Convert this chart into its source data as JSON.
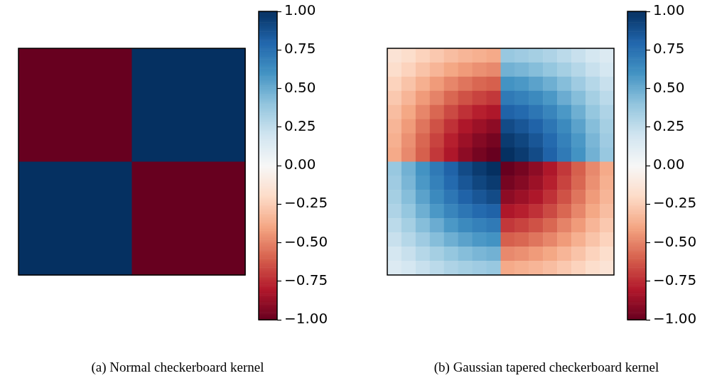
{
  "chart_data": [
    {
      "type": "heatmap",
      "title": "(a) Normal checkerboard kernel",
      "categories": [
        null,
        null
      ],
      "y_categories": [
        null,
        null
      ],
      "tick_labels": false,
      "cells": [
        [
          -1,
          1
        ],
        [
          1,
          -1
        ]
      ],
      "clim": [
        -1,
        1
      ],
      "cticks": [
        {
          "value": -1,
          "label": "−1.00"
        },
        {
          "value": -0.75,
          "label": "−0.75"
        },
        {
          "value": -0.5,
          "label": "−0.50"
        },
        {
          "value": -0.25,
          "label": "−0.25"
        },
        {
          "value": 0,
          "label": "0.00"
        },
        {
          "value": 0.25,
          "label": "0.25"
        },
        {
          "value": 0.5,
          "label": "0.50"
        },
        {
          "value": 0.75,
          "label": "0.75"
        },
        {
          "value": 1,
          "label": "1.00"
        }
      ]
    },
    {
      "type": "heatmap",
      "title": "(b) Gaussian tapered checkerboard kernel",
      "categories": [
        null,
        null,
        null,
        null,
        null,
        null,
        null,
        null,
        null,
        null,
        null,
        null,
        null,
        null,
        null,
        null
      ],
      "y_categories": [
        null,
        null,
        null,
        null,
        null,
        null,
        null,
        null,
        null,
        null,
        null,
        null,
        null,
        null,
        null,
        null
      ],
      "tick_labels": false,
      "cells": [
        [
          -0.14,
          -0.18,
          -0.23,
          -0.27,
          -0.31,
          -0.34,
          -0.36,
          -0.38,
          0.38,
          0.36,
          0.34,
          0.31,
          0.27,
          0.23,
          0.18,
          0.14
        ],
        [
          -0.18,
          -0.23,
          -0.29,
          -0.34,
          -0.39,
          -0.43,
          -0.46,
          -0.48,
          0.48,
          0.46,
          0.43,
          0.39,
          0.34,
          0.29,
          0.23,
          0.18
        ],
        [
          -0.23,
          -0.29,
          -0.36,
          -0.43,
          -0.49,
          -0.54,
          -0.58,
          -0.6,
          0.6,
          0.58,
          0.54,
          0.49,
          0.43,
          0.36,
          0.29,
          0.23
        ],
        [
          -0.27,
          -0.34,
          -0.43,
          -0.5,
          -0.58,
          -0.64,
          -0.68,
          -0.71,
          0.71,
          0.68,
          0.64,
          0.58,
          0.5,
          0.43,
          0.34,
          0.27
        ],
        [
          -0.31,
          -0.39,
          -0.49,
          -0.58,
          -0.66,
          -0.73,
          -0.78,
          -0.81,
          0.81,
          0.78,
          0.73,
          0.66,
          0.58,
          0.49,
          0.39,
          0.31
        ],
        [
          -0.34,
          -0.43,
          -0.54,
          -0.64,
          -0.73,
          -0.81,
          -0.86,
          -0.9,
          0.9,
          0.86,
          0.81,
          0.73,
          0.64,
          0.54,
          0.43,
          0.34
        ],
        [
          -0.36,
          -0.46,
          -0.58,
          -0.68,
          -0.78,
          -0.86,
          -0.92,
          -0.96,
          0.96,
          0.92,
          0.86,
          0.78,
          0.68,
          0.58,
          0.46,
          0.36
        ],
        [
          -0.38,
          -0.48,
          -0.6,
          -0.71,
          -0.81,
          -0.9,
          -0.96,
          -1,
          1,
          0.96,
          0.9,
          0.81,
          0.71,
          0.6,
          0.48,
          0.38
        ],
        [
          0.38,
          0.48,
          0.6,
          0.71,
          0.81,
          0.9,
          0.96,
          1,
          -1,
          -0.96,
          -0.9,
          -0.81,
          -0.71,
          -0.6,
          -0.48,
          -0.38
        ],
        [
          0.36,
          0.46,
          0.58,
          0.68,
          0.78,
          0.86,
          0.92,
          0.96,
          -0.96,
          -0.92,
          -0.86,
          -0.78,
          -0.68,
          -0.58,
          -0.46,
          -0.36
        ],
        [
          0.34,
          0.43,
          0.54,
          0.64,
          0.73,
          0.81,
          0.86,
          0.9,
          -0.9,
          -0.86,
          -0.81,
          -0.73,
          -0.64,
          -0.54,
          -0.43,
          -0.34
        ],
        [
          0.31,
          0.39,
          0.49,
          0.58,
          0.66,
          0.73,
          0.78,
          0.81,
          -0.81,
          -0.78,
          -0.73,
          -0.66,
          -0.58,
          -0.49,
          -0.39,
          -0.31
        ],
        [
          0.27,
          0.34,
          0.43,
          0.5,
          0.58,
          0.64,
          0.68,
          0.71,
          -0.71,
          -0.68,
          -0.64,
          -0.58,
          -0.5,
          -0.43,
          -0.34,
          -0.27
        ],
        [
          0.23,
          0.29,
          0.36,
          0.43,
          0.49,
          0.54,
          0.58,
          0.6,
          -0.6,
          -0.58,
          -0.54,
          -0.49,
          -0.43,
          -0.36,
          -0.29,
          -0.23
        ],
        [
          0.18,
          0.23,
          0.29,
          0.34,
          0.39,
          0.43,
          0.46,
          0.48,
          -0.48,
          -0.46,
          -0.43,
          -0.39,
          -0.34,
          -0.29,
          -0.23,
          -0.18
        ],
        [
          0.14,
          0.18,
          0.23,
          0.27,
          0.31,
          0.34,
          0.36,
          0.38,
          -0.38,
          -0.36,
          -0.34,
          -0.31,
          -0.27,
          -0.23,
          -0.18,
          -0.14
        ]
      ],
      "clim": [
        -1,
        1
      ],
      "cticks": [
        {
          "value": -1,
          "label": "−1.00"
        },
        {
          "value": -0.75,
          "label": "−0.75"
        },
        {
          "value": -0.5,
          "label": "−0.50"
        },
        {
          "value": -0.25,
          "label": "−0.25"
        },
        {
          "value": 0,
          "label": "0.00"
        },
        {
          "value": 0.25,
          "label": "0.25"
        },
        {
          "value": 0.5,
          "label": "0.50"
        },
        {
          "value": 0.75,
          "label": "0.75"
        },
        {
          "value": 1,
          "label": "1.00"
        }
      ]
    }
  ]
}
